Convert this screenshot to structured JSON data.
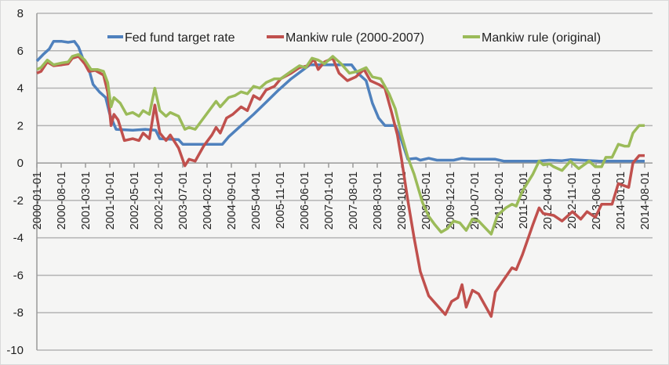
{
  "chart_data": {
    "type": "line",
    "title": "",
    "xlabel": "",
    "ylabel": "",
    "ylim": [
      -10,
      8
    ],
    "yticks": [
      8,
      6,
      4,
      2,
      0,
      -2,
      -4,
      -6,
      -8,
      -10
    ],
    "xlim": [
      2000.0,
      2014.583
    ],
    "grid": true,
    "legend_position": "top",
    "xtick_labels": [
      "2000-01-01",
      "2000-08-01",
      "2001-03-01",
      "2001-10-01",
      "2002-05-01",
      "2002-12-01",
      "2003-07-01",
      "2004-02-01",
      "2004-09-01",
      "2005-04-01",
      "2005-11-01",
      "2006-06-01",
      "2007-01-01",
      "2007-08-01",
      "2008-03-01",
      "2008-10-01",
      "2009-05-01",
      "2009-12-01",
      "2010-07-01",
      "2011-02-01",
      "2011-09-01",
      "2012-04-01",
      "2012-11-01",
      "2013-06-01",
      "2014-01-01",
      "2014-08-01"
    ],
    "series": [
      {
        "name": "Fed fund target rate",
        "color": "#4f81bd",
        "points": [
          [
            2000.0,
            5.45
          ],
          [
            2000.15,
            5.8
          ],
          [
            2000.3,
            6.1
          ],
          [
            2000.4,
            6.5
          ],
          [
            2000.6,
            6.5
          ],
          [
            2000.75,
            6.45
          ],
          [
            2000.9,
            6.5
          ],
          [
            2001.0,
            6.2
          ],
          [
            2001.1,
            5.6
          ],
          [
            2001.25,
            5.0
          ],
          [
            2001.35,
            4.2
          ],
          [
            2001.5,
            3.8
          ],
          [
            2001.65,
            3.5
          ],
          [
            2001.75,
            2.6
          ],
          [
            2001.9,
            1.8
          ],
          [
            2002.3,
            1.75
          ],
          [
            2002.6,
            1.8
          ],
          [
            2002.85,
            1.75
          ],
          [
            2002.95,
            1.3
          ],
          [
            2003.4,
            1.25
          ],
          [
            2003.5,
            1.0
          ],
          [
            2004.45,
            1.0
          ],
          [
            2004.6,
            1.4
          ],
          [
            2004.9,
            2.0
          ],
          [
            2005.2,
            2.6
          ],
          [
            2005.5,
            3.25
          ],
          [
            2005.8,
            3.9
          ],
          [
            2006.1,
            4.5
          ],
          [
            2006.4,
            5.0
          ],
          [
            2006.55,
            5.25
          ],
          [
            2007.55,
            5.25
          ],
          [
            2007.7,
            4.8
          ],
          [
            2007.9,
            4.4
          ],
          [
            2008.05,
            3.2
          ],
          [
            2008.2,
            2.4
          ],
          [
            2008.35,
            2.0
          ],
          [
            2008.6,
            2.0
          ],
          [
            2008.75,
            1.2
          ],
          [
            2008.9,
            0.2
          ],
          [
            2009.1,
            0.25
          ],
          [
            2009.2,
            0.15
          ],
          [
            2009.4,
            0.25
          ],
          [
            2009.6,
            0.15
          ],
          [
            2010.0,
            0.15
          ],
          [
            2010.2,
            0.25
          ],
          [
            2010.4,
            0.2
          ],
          [
            2011.0,
            0.2
          ],
          [
            2011.2,
            0.1
          ],
          [
            2012.0,
            0.1
          ],
          [
            2012.3,
            0.15
          ],
          [
            2012.6,
            0.12
          ],
          [
            2012.8,
            0.18
          ],
          [
            2013.5,
            0.1
          ],
          [
            2014.583,
            0.1
          ]
        ]
      },
      {
        "name": "Mankiw rule (2000-2007)",
        "color": "#c0504d",
        "points": [
          [
            2000.0,
            4.8
          ],
          [
            2000.1,
            4.9
          ],
          [
            2000.25,
            5.4
          ],
          [
            2000.4,
            5.2
          ],
          [
            2000.6,
            5.25
          ],
          [
            2000.75,
            5.3
          ],
          [
            2000.85,
            5.6
          ],
          [
            2001.0,
            5.7
          ],
          [
            2001.15,
            5.3
          ],
          [
            2001.25,
            4.9
          ],
          [
            2001.4,
            4.95
          ],
          [
            2001.6,
            4.7
          ],
          [
            2001.7,
            3.8
          ],
          [
            2001.78,
            2.0
          ],
          [
            2001.85,
            2.6
          ],
          [
            2001.95,
            2.3
          ],
          [
            2002.1,
            1.2
          ],
          [
            2002.3,
            1.3
          ],
          [
            2002.45,
            1.2
          ],
          [
            2002.55,
            1.6
          ],
          [
            2002.7,
            1.3
          ],
          [
            2002.83,
            3.1
          ],
          [
            2002.95,
            1.6
          ],
          [
            2003.1,
            1.2
          ],
          [
            2003.2,
            1.5
          ],
          [
            2003.4,
            0.8
          ],
          [
            2003.55,
            -0.15
          ],
          [
            2003.65,
            0.2
          ],
          [
            2003.8,
            0.1
          ],
          [
            2004.0,
            0.9
          ],
          [
            2004.2,
            1.5
          ],
          [
            2004.3,
            1.9
          ],
          [
            2004.4,
            1.6
          ],
          [
            2004.55,
            2.4
          ],
          [
            2004.7,
            2.6
          ],
          [
            2004.9,
            3.0
          ],
          [
            2005.05,
            2.8
          ],
          [
            2005.2,
            3.6
          ],
          [
            2005.35,
            3.4
          ],
          [
            2005.5,
            3.9
          ],
          [
            2005.7,
            4.1
          ],
          [
            2005.85,
            4.5
          ],
          [
            2006.1,
            4.8
          ],
          [
            2006.3,
            5.1
          ],
          [
            2006.5,
            5.2
          ],
          [
            2006.65,
            5.55
          ],
          [
            2006.75,
            5.0
          ],
          [
            2006.9,
            5.4
          ],
          [
            2007.1,
            5.6
          ],
          [
            2007.25,
            4.8
          ],
          [
            2007.45,
            4.4
          ],
          [
            2007.65,
            4.6
          ],
          [
            2007.85,
            5.0
          ],
          [
            2008.0,
            4.4
          ],
          [
            2008.2,
            4.2
          ],
          [
            2008.35,
            4.0
          ],
          [
            2008.5,
            2.8
          ],
          [
            2008.65,
            1.5
          ],
          [
            2008.75,
            0.2
          ],
          [
            2008.9,
            -2.0
          ],
          [
            2009.05,
            -4.0
          ],
          [
            2009.2,
            -5.8
          ],
          [
            2009.4,
            -7.1
          ],
          [
            2009.6,
            -7.6
          ],
          [
            2009.8,
            -8.1
          ],
          [
            2009.95,
            -7.4
          ],
          [
            2010.1,
            -7.2
          ],
          [
            2010.2,
            -6.5
          ],
          [
            2010.3,
            -7.7
          ],
          [
            2010.45,
            -6.8
          ],
          [
            2010.6,
            -7.0
          ],
          [
            2010.9,
            -8.2
          ],
          [
            2011.0,
            -6.9
          ],
          [
            2011.15,
            -6.4
          ],
          [
            2011.4,
            -5.6
          ],
          [
            2011.5,
            -5.7
          ],
          [
            2011.65,
            -4.9
          ],
          [
            2011.9,
            -3.3
          ],
          [
            2012.05,
            -2.4
          ],
          [
            2012.15,
            -2.7
          ],
          [
            2012.4,
            -2.8
          ],
          [
            2012.6,
            -3.1
          ],
          [
            2012.85,
            -2.6
          ],
          [
            2013.05,
            -3.0
          ],
          [
            2013.2,
            -2.6
          ],
          [
            2013.4,
            -2.9
          ],
          [
            2013.55,
            -2.2
          ],
          [
            2013.8,
            -2.2
          ],
          [
            2013.95,
            -1.1
          ],
          [
            2014.2,
            -1.3
          ],
          [
            2014.3,
            0.0
          ],
          [
            2014.45,
            0.4
          ],
          [
            2014.583,
            0.4
          ]
        ]
      },
      {
        "name": "Mankiw rule (original)",
        "color": "#9bbb59",
        "points": [
          [
            2000.0,
            5.0
          ],
          [
            2000.1,
            5.1
          ],
          [
            2000.25,
            5.5
          ],
          [
            2000.4,
            5.25
          ],
          [
            2000.6,
            5.35
          ],
          [
            2000.75,
            5.4
          ],
          [
            2000.85,
            5.7
          ],
          [
            2001.0,
            5.8
          ],
          [
            2001.15,
            5.5
          ],
          [
            2001.3,
            5.0
          ],
          [
            2001.45,
            5.0
          ],
          [
            2001.6,
            4.9
          ],
          [
            2001.7,
            4.3
          ],
          [
            2001.78,
            3.0
          ],
          [
            2001.85,
            3.5
          ],
          [
            2002.0,
            3.2
          ],
          [
            2002.15,
            2.6
          ],
          [
            2002.3,
            2.7
          ],
          [
            2002.45,
            2.5
          ],
          [
            2002.55,
            2.8
          ],
          [
            2002.7,
            2.6
          ],
          [
            2002.83,
            4.0
          ],
          [
            2002.95,
            2.8
          ],
          [
            2003.1,
            2.5
          ],
          [
            2003.2,
            2.7
          ],
          [
            2003.4,
            2.5
          ],
          [
            2003.55,
            1.8
          ],
          [
            2003.65,
            1.9
          ],
          [
            2003.8,
            1.8
          ],
          [
            2004.1,
            2.7
          ],
          [
            2004.3,
            3.3
          ],
          [
            2004.4,
            3.0
          ],
          [
            2004.6,
            3.5
          ],
          [
            2004.75,
            3.6
          ],
          [
            2004.9,
            3.8
          ],
          [
            2005.05,
            3.7
          ],
          [
            2005.2,
            4.1
          ],
          [
            2005.35,
            4.0
          ],
          [
            2005.5,
            4.3
          ],
          [
            2005.7,
            4.5
          ],
          [
            2005.85,
            4.5
          ],
          [
            2006.1,
            4.9
          ],
          [
            2006.3,
            5.2
          ],
          [
            2006.45,
            5.1
          ],
          [
            2006.6,
            5.6
          ],
          [
            2006.75,
            5.5
          ],
          [
            2006.9,
            5.3
          ],
          [
            2007.1,
            5.7
          ],
          [
            2007.3,
            5.3
          ],
          [
            2007.5,
            4.8
          ],
          [
            2007.7,
            4.9
          ],
          [
            2007.9,
            5.1
          ],
          [
            2008.05,
            4.6
          ],
          [
            2008.25,
            4.5
          ],
          [
            2008.45,
            3.7
          ],
          [
            2008.6,
            2.9
          ],
          [
            2008.75,
            1.5
          ],
          [
            2008.9,
            0.3
          ],
          [
            2009.05,
            -0.6
          ],
          [
            2009.25,
            -2.1
          ],
          [
            2009.4,
            -2.85
          ],
          [
            2009.55,
            -3.3
          ],
          [
            2009.7,
            -3.7
          ],
          [
            2009.85,
            -3.5
          ],
          [
            2010.0,
            -3.1
          ],
          [
            2010.15,
            -3.2
          ],
          [
            2010.3,
            -3.6
          ],
          [
            2010.45,
            -3.0
          ],
          [
            2010.6,
            -3.1
          ],
          [
            2010.9,
            -3.8
          ],
          [
            2011.05,
            -2.8
          ],
          [
            2011.25,
            -2.4
          ],
          [
            2011.4,
            -2.2
          ],
          [
            2011.5,
            -2.3
          ],
          [
            2011.65,
            -1.5
          ],
          [
            2011.9,
            -0.6
          ],
          [
            2012.05,
            0.1
          ],
          [
            2012.15,
            -0.1
          ],
          [
            2012.3,
            -0.05
          ],
          [
            2012.4,
            -0.2
          ],
          [
            2012.6,
            -0.4
          ],
          [
            2012.8,
            0.1
          ],
          [
            2013.0,
            -0.3
          ],
          [
            2013.25,
            0.1
          ],
          [
            2013.4,
            -0.2
          ],
          [
            2013.55,
            -0.2
          ],
          [
            2013.65,
            0.3
          ],
          [
            2013.8,
            0.3
          ],
          [
            2013.95,
            1.0
          ],
          [
            2014.1,
            0.9
          ],
          [
            2014.2,
            0.9
          ],
          [
            2014.3,
            1.6
          ],
          [
            2014.45,
            2.0
          ],
          [
            2014.583,
            2.0
          ]
        ]
      }
    ]
  }
}
